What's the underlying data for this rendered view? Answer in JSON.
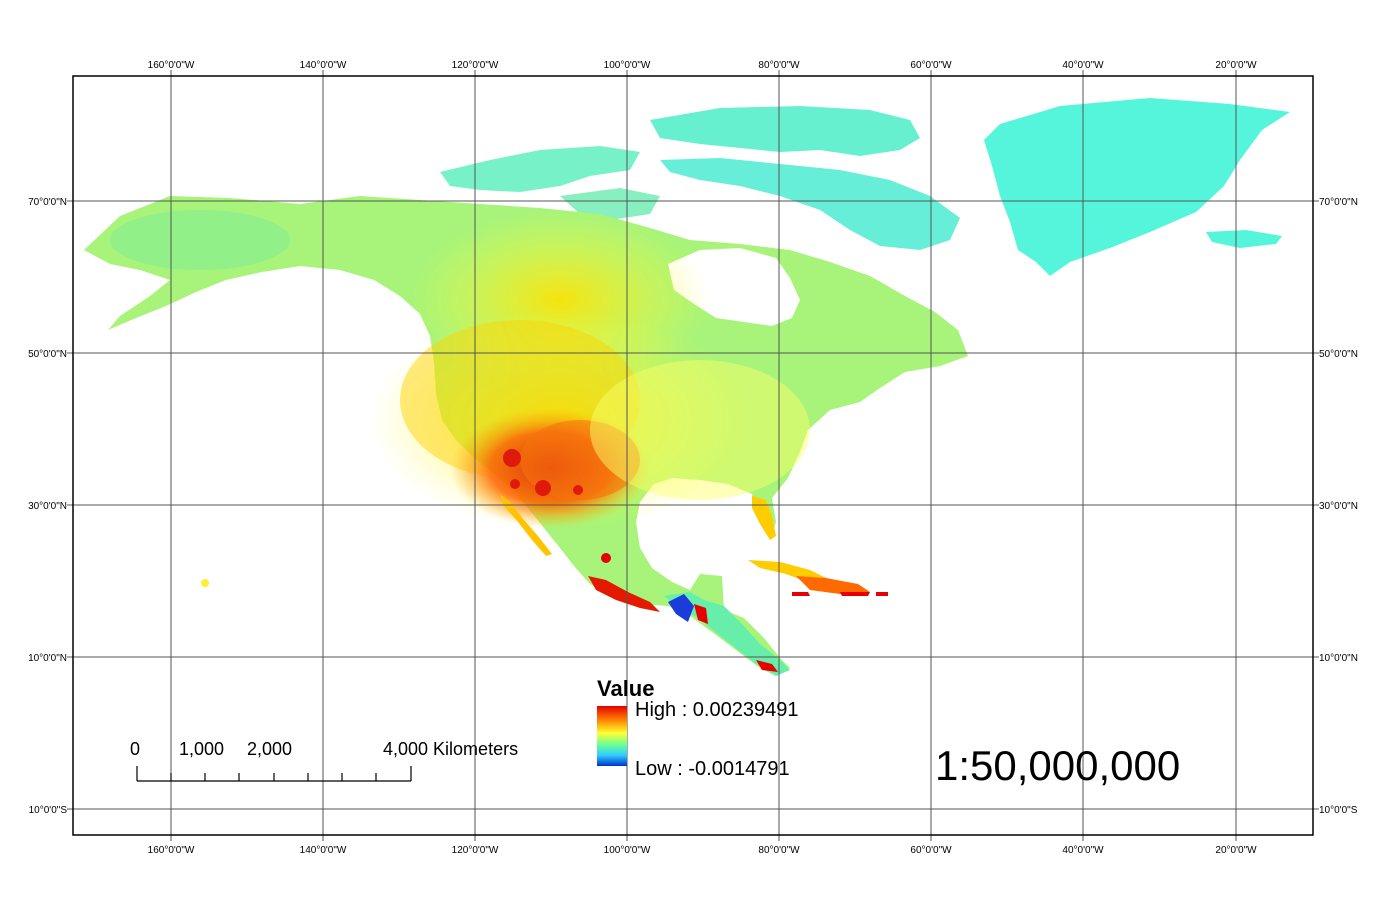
{
  "map": {
    "lon_labels": [
      "160°0'0\"W",
      "140°0'0\"W",
      "120°0'0\"W",
      "100°0'0\"W",
      "80°0'0\"W",
      "60°0'0\"W",
      "40°0'0\"W",
      "20°0'0\"W"
    ],
    "lat_labels": [
      "70°0'0\"N",
      "50°0'0\"N",
      "30°0'0\"N",
      "10°0'0\"N",
      "10°0'0\"S"
    ]
  },
  "legend": {
    "title": "Value",
    "high_label": "High : 0.00239491",
    "low_label": "Low : -0.0014791",
    "colors": [
      "#e60000",
      "#ff8c00",
      "#ffff33",
      "#66ff99",
      "#33ccff",
      "#0033cc"
    ]
  },
  "scale_bar": {
    "labels": [
      "0",
      "1,000",
      "2,000",
      "4,000 Kilometers"
    ]
  },
  "scale_ratio": "1:50,000,000"
}
